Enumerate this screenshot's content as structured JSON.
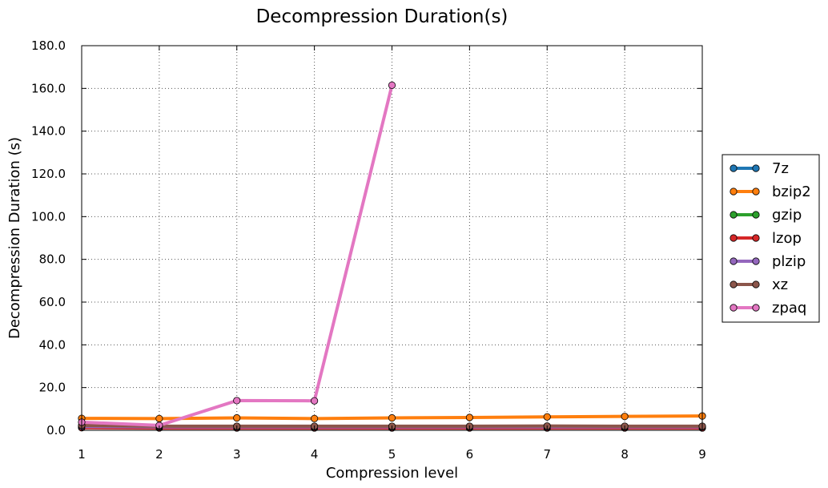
{
  "chart_data": {
    "type": "line",
    "title": "Decompression Duration(s)",
    "xlabel": "Compression level",
    "ylabel": "Decompression Duration (s)",
    "x": [
      1,
      2,
      3,
      4,
      5,
      6,
      7,
      8,
      9
    ],
    "xlim": [
      1,
      9
    ],
    "ylim": [
      0,
      180
    ],
    "x_tick_labels": [
      "1",
      "2",
      "3",
      "4",
      "5",
      "6",
      "7",
      "8",
      "9"
    ],
    "y_tick_labels": [
      "0.0",
      "20.0",
      "40.0",
      "60.0",
      "80.0",
      "100.0",
      "120.0",
      "140.0",
      "160.0",
      "180.0"
    ],
    "grid": true,
    "legend_position": "right",
    "series": [
      {
        "name": "7z",
        "color": "#1f77b4",
        "values": [
          1.9,
          1.6,
          1.6,
          1.6,
          1.6,
          1.6,
          1.6,
          1.6,
          1.6
        ]
      },
      {
        "name": "bzip2",
        "color": "#ff7f0e",
        "values": [
          5.6,
          5.5,
          5.8,
          5.5,
          5.8,
          6.0,
          6.3,
          6.5,
          6.7
        ]
      },
      {
        "name": "gzip",
        "color": "#2ca02c",
        "values": [
          1.5,
          1.4,
          1.4,
          1.4,
          1.4,
          1.4,
          1.4,
          1.4,
          1.4
        ]
      },
      {
        "name": "lzop",
        "color": "#d62728",
        "values": [
          1.2,
          1.1,
          1.1,
          1.1,
          1.1,
          1.1,
          1.1,
          1.1,
          1.1
        ]
      },
      {
        "name": "plzip",
        "color": "#9467bd",
        "values": [
          1.8,
          1.6,
          1.6,
          1.6,
          1.6,
          1.6,
          1.6,
          1.6,
          1.6
        ]
      },
      {
        "name": "xz",
        "color": "#8c564b",
        "values": [
          2.3,
          1.9,
          1.9,
          1.9,
          1.9,
          1.9,
          2.0,
          1.9,
          1.9
        ]
      },
      {
        "name": "zpaq",
        "color": "#e377c2",
        "values": [
          3.8,
          2.3,
          13.9,
          13.8,
          161.5,
          null,
          null,
          null,
          null
        ]
      }
    ]
  }
}
